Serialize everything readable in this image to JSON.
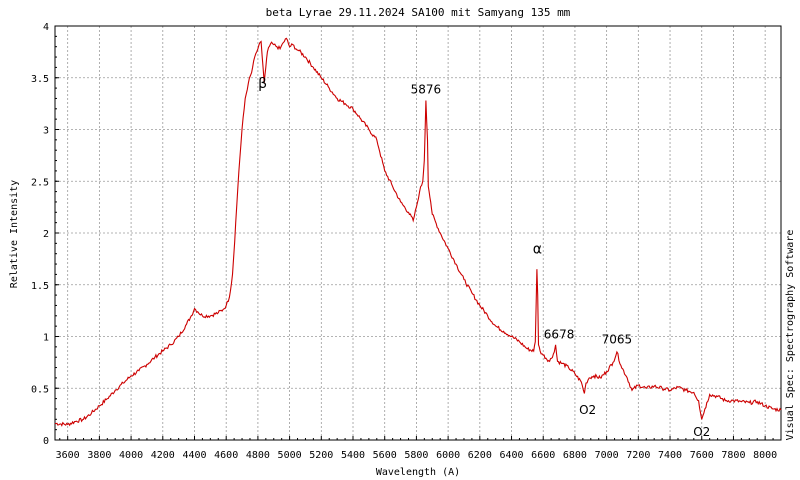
{
  "chart_data": {
    "type": "line",
    "title": "beta Lyrae 29.11.2024 SA100 mit Samyang 135 mm",
    "xlabel": "Wavelength (A)",
    "ylabel": "Relative Intensity",
    "side_label": "Visual Spec: Spectrography Software",
    "xlim": [
      3520,
      8100
    ],
    "ylim": [
      0,
      4
    ],
    "grid": true,
    "line_color": "#cc0000",
    "x_ticks": [
      3600,
      3800,
      4000,
      4200,
      4400,
      4600,
      4800,
      5000,
      5200,
      5400,
      5600,
      5800,
      6000,
      6200,
      6400,
      6600,
      6800,
      7000,
      7200,
      7400,
      7600,
      7800,
      8000
    ],
    "y_ticks": [
      0,
      0.5,
      1,
      1.5,
      2,
      2.5,
      3,
      3.5,
      4
    ],
    "y_tick_labels": [
      "0",
      "0.5",
      "1",
      "1.5",
      "2",
      "2.5",
      "3",
      "3.5",
      "4"
    ],
    "series": [
      {
        "x": [
          3520,
          3600,
          3650,
          3700,
          3750,
          3800,
          3850,
          3900,
          3950,
          4000,
          4050,
          4100,
          4150,
          4200,
          4250,
          4300,
          4350,
          4380,
          4400,
          4420,
          4450,
          4500,
          4550,
          4580,
          4600,
          4620,
          4640,
          4660,
          4680,
          4700,
          4720,
          4740,
          4760,
          4780,
          4800,
          4820,
          4840,
          4850,
          4860,
          4880,
          4900,
          4920,
          4940,
          4960,
          4980,
          5000,
          5020,
          5040,
          5060,
          5100,
          5150,
          5200,
          5250,
          5300,
          5350,
          5400,
          5450,
          5500,
          5550,
          5600,
          5650,
          5700,
          5750,
          5780,
          5800,
          5820,
          5840,
          5850,
          5860,
          5870,
          5875,
          5880,
          5890,
          5900,
          5950,
          6000,
          6050,
          6100,
          6150,
          6200,
          6250,
          6300,
          6350,
          6400,
          6450,
          6500,
          6540,
          6550,
          6560,
          6565,
          6570,
          6580,
          6600,
          6640,
          6670,
          6678,
          6690,
          6720,
          6760,
          6800,
          6840,
          6860,
          6870,
          6890,
          6920,
          6960,
          7000,
          7040,
          7065,
          7090,
          7130,
          7160,
          7200,
          7250,
          7300,
          7350,
          7400,
          7450,
          7500,
          7550,
          7580,
          7600,
          7620,
          7650,
          7700,
          7750,
          7800,
          7850,
          7900,
          7950,
          8000,
          8050,
          8100
        ],
        "values": [
          0.16,
          0.15,
          0.18,
          0.2,
          0.26,
          0.33,
          0.4,
          0.48,
          0.55,
          0.62,
          0.67,
          0.73,
          0.8,
          0.86,
          0.92,
          1.0,
          1.12,
          1.2,
          1.27,
          1.24,
          1.2,
          1.2,
          1.23,
          1.26,
          1.3,
          1.38,
          1.6,
          2.1,
          2.6,
          3.0,
          3.3,
          3.45,
          3.55,
          3.7,
          3.78,
          3.85,
          3.45,
          3.6,
          3.75,
          3.83,
          3.82,
          3.8,
          3.78,
          3.84,
          3.88,
          3.8,
          3.82,
          3.78,
          3.76,
          3.7,
          3.6,
          3.5,
          3.4,
          3.3,
          3.25,
          3.2,
          3.1,
          3.0,
          2.9,
          2.6,
          2.45,
          2.3,
          2.2,
          2.12,
          2.25,
          2.4,
          2.5,
          2.7,
          3.28,
          2.9,
          2.45,
          2.4,
          2.3,
          2.18,
          2.0,
          1.85,
          1.7,
          1.55,
          1.42,
          1.3,
          1.2,
          1.1,
          1.05,
          1.0,
          0.95,
          0.88,
          0.86,
          0.95,
          1.65,
          1.4,
          0.92,
          0.86,
          0.82,
          0.76,
          0.85,
          0.92,
          0.76,
          0.74,
          0.7,
          0.64,
          0.56,
          0.45,
          0.55,
          0.6,
          0.62,
          0.6,
          0.66,
          0.75,
          0.85,
          0.72,
          0.6,
          0.48,
          0.53,
          0.5,
          0.52,
          0.5,
          0.48,
          0.51,
          0.48,
          0.46,
          0.38,
          0.2,
          0.3,
          0.44,
          0.42,
          0.38,
          0.38,
          0.37,
          0.36,
          0.37,
          0.33,
          0.3,
          0.29
        ]
      }
    ],
    "annotations": [
      {
        "text": "β",
        "x": 4830,
        "y": 3.4
      },
      {
        "text": "5876",
        "x": 5860,
        "y": 3.35
      },
      {
        "text": "α",
        "x": 6563,
        "y": 1.8
      },
      {
        "text": "6678",
        "x": 6700,
        "y": 0.98
      },
      {
        "text": "7065",
        "x": 7065,
        "y": 0.93
      },
      {
        "text": "O2",
        "x": 6880,
        "y": 0.25
      },
      {
        "text": "O2",
        "x": 7600,
        "y": 0.04
      }
    ]
  }
}
